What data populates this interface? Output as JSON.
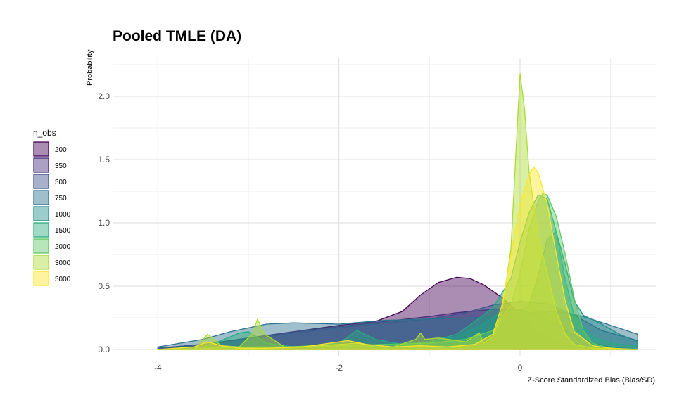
{
  "chart_data": {
    "type": "area",
    "subtype": "density",
    "title": "Pooled TMLE (DA)",
    "xlabel": "Z-Score Standardized Bias (Bias/SD)",
    "ylabel": "Probability",
    "xlim": [
      -4.5,
      1.5
    ],
    "ylim": [
      -0.05,
      2.3
    ],
    "x_ticks": [
      -4,
      -2,
      0
    ],
    "x_tick_labels": [
      "-4",
      "-2",
      "0"
    ],
    "y_ticks": [
      0.0,
      0.5,
      1.0,
      1.5,
      2.0
    ],
    "y_tick_labels": [
      "0.0",
      "0.5",
      "1.0",
      "1.5",
      "2.0"
    ],
    "grid": true,
    "legend": {
      "title": "n_obs",
      "position": "left"
    },
    "series": [
      {
        "name": "200",
        "color": "#440154",
        "x": [
          -4.0,
          -3.5,
          -3.0,
          -2.5,
          -2.0,
          -1.6,
          -1.3,
          -1.1,
          -0.9,
          -0.7,
          -0.55,
          -0.4,
          -0.2,
          0.0,
          0.2,
          0.4,
          0.6,
          0.8,
          1.0,
          1.3
        ],
        "y": [
          0.01,
          0.04,
          0.09,
          0.14,
          0.19,
          0.22,
          0.3,
          0.43,
          0.53,
          0.57,
          0.56,
          0.51,
          0.41,
          0.28,
          0.14,
          0.05,
          0.02,
          0.01,
          0.0,
          0.0
        ]
      },
      {
        "name": "350",
        "color": "#472D7B",
        "x": [
          -4.0,
          -3.5,
          -3.0,
          -2.5,
          -2.0,
          -1.5,
          -1.0,
          -0.7,
          -0.4,
          -0.2,
          0.0,
          0.2,
          0.4,
          0.6,
          0.8,
          1.0,
          1.3
        ],
        "y": [
          0.01,
          0.04,
          0.09,
          0.14,
          0.18,
          0.22,
          0.26,
          0.29,
          0.31,
          0.32,
          0.31,
          0.27,
          0.2,
          0.11,
          0.05,
          0.02,
          0.0
        ]
      },
      {
        "name": "500",
        "color": "#3B528B",
        "x": [
          -4.0,
          -3.5,
          -3.0,
          -2.5,
          -2.0,
          -1.5,
          -1.0,
          -0.6,
          -0.3,
          0.0,
          0.3,
          0.6,
          0.9,
          1.3
        ],
        "y": [
          0.01,
          0.04,
          0.08,
          0.13,
          0.17,
          0.21,
          0.24,
          0.29,
          0.35,
          0.38,
          0.36,
          0.27,
          0.15,
          0.07
        ]
      },
      {
        "name": "750",
        "color": "#2C728E",
        "x": [
          -4.0,
          -3.5,
          -3.2,
          -2.8,
          -2.5,
          -2.0,
          -1.5,
          -1.0,
          -0.5,
          -0.2,
          0.1,
          0.4,
          0.7,
          1.0,
          1.3
        ],
        "y": [
          0.02,
          0.08,
          0.14,
          0.2,
          0.21,
          0.2,
          0.23,
          0.24,
          0.25,
          0.27,
          0.29,
          0.3,
          0.26,
          0.19,
          0.12
        ]
      },
      {
        "name": "1000",
        "color": "#21908C",
        "x": [
          -4.0,
          -3.5,
          -3.0,
          -2.5,
          -2.0,
          -1.5,
          -1.0,
          -0.7,
          -0.4,
          -0.2,
          0.0,
          0.1,
          0.2,
          0.3,
          0.4,
          0.5,
          0.6,
          0.7,
          0.9,
          1.1,
          1.3
        ],
        "y": [
          0.0,
          0.01,
          0.02,
          0.02,
          0.03,
          0.04,
          0.06,
          0.1,
          0.2,
          0.3,
          0.3,
          0.35,
          0.58,
          0.87,
          0.93,
          0.67,
          0.38,
          0.27,
          0.2,
          0.12,
          0.06
        ]
      },
      {
        "name": "1500",
        "color": "#27AD81",
        "x": [
          -4.0,
          -3.5,
          -3.3,
          -3.1,
          -3.0,
          -2.8,
          -2.5,
          -2.0,
          -1.8,
          -1.6,
          -1.3,
          -1.0,
          -0.7,
          -0.5,
          -0.3,
          -0.1,
          0.0,
          0.1,
          0.2,
          0.3,
          0.4,
          0.5,
          0.6,
          0.8,
          1.0,
          1.3
        ],
        "y": [
          0.0,
          0.02,
          0.07,
          0.13,
          0.14,
          0.05,
          0.02,
          0.05,
          0.15,
          0.08,
          0.04,
          0.06,
          0.12,
          0.22,
          0.33,
          0.56,
          0.85,
          1.08,
          1.22,
          1.19,
          0.93,
          0.55,
          0.26,
          0.1,
          0.05,
          0.02
        ]
      },
      {
        "name": "2000",
        "color": "#5DC863",
        "x": [
          -4.0,
          -3.5,
          -3.0,
          -2.5,
          -2.0,
          -1.5,
          -1.0,
          -0.6,
          -0.3,
          -0.1,
          0.0,
          0.1,
          0.2,
          0.25,
          0.3,
          0.4,
          0.5,
          0.6,
          0.7,
          0.8,
          1.0,
          1.3
        ],
        "y": [
          0.0,
          0.01,
          0.02,
          0.02,
          0.03,
          0.04,
          0.05,
          0.08,
          0.15,
          0.35,
          0.6,
          0.95,
          1.17,
          1.23,
          1.22,
          1.05,
          0.75,
          0.4,
          0.15,
          0.05,
          0.01,
          0.0
        ]
      },
      {
        "name": "3000",
        "color": "#AADC32",
        "x": [
          -4.0,
          -3.6,
          -3.45,
          -3.3,
          -3.1,
          -2.95,
          -2.9,
          -2.82,
          -2.6,
          -2.2,
          -1.8,
          -1.6,
          -1.4,
          -1.15,
          -1.1,
          -1.05,
          -0.9,
          -0.6,
          -0.45,
          -0.4,
          -0.3,
          -0.2,
          -0.1,
          -0.05,
          0.0,
          0.05,
          0.1,
          0.2,
          0.3,
          0.4,
          0.5,
          0.6,
          0.8,
          1.3
        ],
        "y": [
          0.0,
          0.0,
          0.12,
          0.03,
          0.02,
          0.13,
          0.24,
          0.12,
          0.02,
          0.03,
          0.05,
          0.02,
          0.02,
          0.08,
          0.13,
          0.08,
          0.09,
          0.06,
          0.13,
          0.05,
          0.1,
          0.3,
          0.8,
          1.5,
          2.18,
          1.9,
          1.4,
          0.9,
          0.6,
          0.3,
          0.12,
          0.04,
          0.01,
          0.0
        ]
      },
      {
        "name": "5000",
        "color": "#FDE725",
        "x": [
          -4.0,
          -3.6,
          -3.45,
          -3.3,
          -3.1,
          -2.8,
          -2.4,
          -2.1,
          -1.9,
          -1.7,
          -1.4,
          -1.1,
          -0.8,
          -0.5,
          -0.3,
          -0.2,
          -0.1,
          0.0,
          0.1,
          0.15,
          0.2,
          0.3,
          0.4,
          0.5,
          0.6,
          0.8,
          1.0,
          1.3
        ],
        "y": [
          0.0,
          0.02,
          0.06,
          0.03,
          0.01,
          0.01,
          0.02,
          0.05,
          0.07,
          0.04,
          0.02,
          0.03,
          0.02,
          0.04,
          0.12,
          0.35,
          0.75,
          1.15,
          1.38,
          1.44,
          1.4,
          1.15,
          0.75,
          0.38,
          0.14,
          0.03,
          0.01,
          0.0
        ]
      }
    ]
  }
}
